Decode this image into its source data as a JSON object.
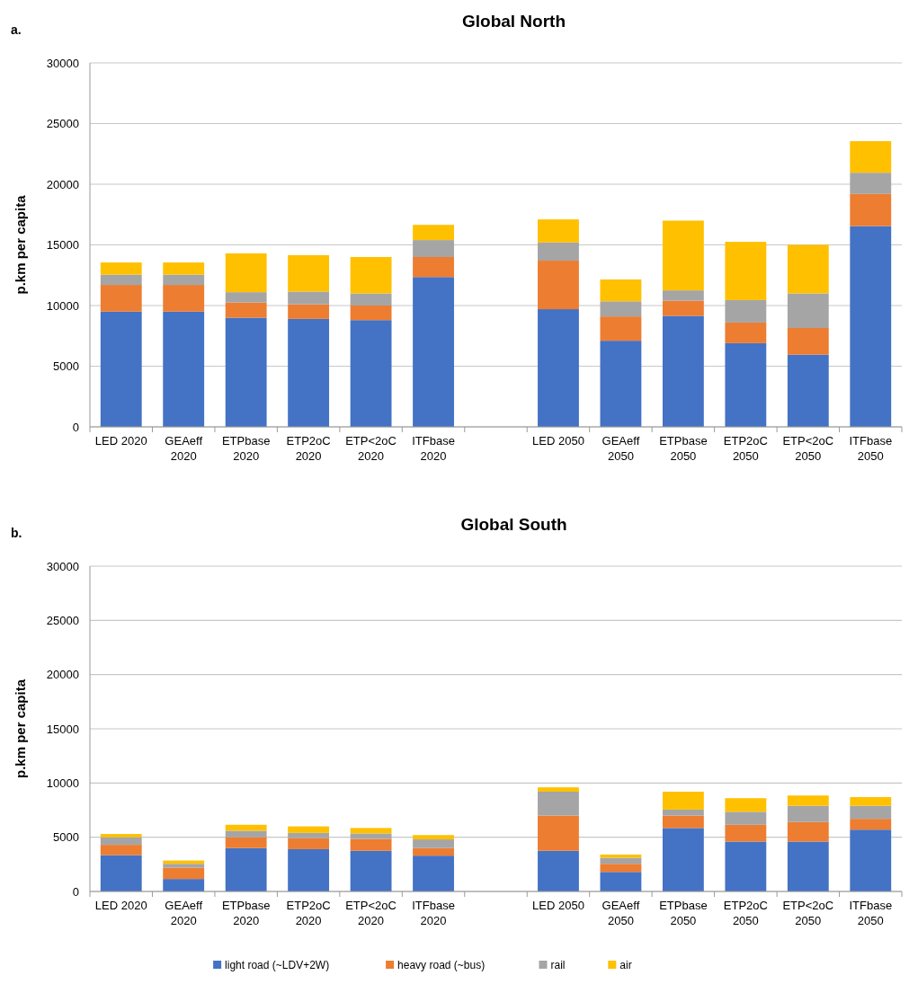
{
  "chart_data": [
    {
      "type": "bar",
      "title": "Global North",
      "annotations": [
        "a."
      ],
      "ylabel": "p.km per capita",
      "stacked": true,
      "categories": [
        "LED 2020",
        "GEAeff 2020",
        "ETPbase 2020",
        "ETP2oC 2020",
        "ETP<2oC 2020",
        "ITFbase 2020",
        null,
        "LED 2050",
        "GEAeff 2050",
        "ETPbase 2050",
        "ETP2oC 2050",
        "ETP<2oC 2050",
        "ITFbase 2050"
      ],
      "ylim": [
        0,
        30000
      ],
      "yticks": [
        0,
        5000,
        10000,
        15000,
        20000,
        25000,
        30000
      ],
      "grid": "y",
      "legend": false,
      "series": [
        {
          "color": "#4472c4",
          "values": [
            9500,
            9500,
            9000,
            8900,
            8800,
            12350,
            null,
            9700,
            7100,
            9150,
            6900,
            5950,
            16550
          ]
        },
        {
          "color": "#ed7d31",
          "values": [
            2200,
            2200,
            1250,
            1200,
            1200,
            1650,
            null,
            4000,
            2000,
            1250,
            1700,
            2200,
            2650
          ]
        },
        {
          "color": "#a5a5a5",
          "values": [
            850,
            850,
            850,
            1050,
            1000,
            1400,
            null,
            1500,
            1250,
            850,
            1850,
            2850,
            1750
          ]
        },
        {
          "color": "#ffc000",
          "values": [
            1000,
            1000,
            3200,
            3000,
            3000,
            1250,
            null,
            1900,
            1800,
            5750,
            4800,
            4000,
            2600
          ]
        }
      ]
    },
    {
      "type": "bar",
      "title": "Global South",
      "annotations": [
        "b."
      ],
      "ylabel": "p.km per capita",
      "stacked": true,
      "categories": [
        "LED 2020",
        "GEAeff 2020",
        "ETPbase 2020",
        "ETP2oC 2020",
        "ETP<2oC 2020",
        "ITFbase 2020",
        null,
        "LED 2050",
        "GEAeff 2050",
        "ETPbase 2050",
        "ETP2oC 2050",
        "ETP<2oC 2050",
        "ITFbase 2050"
      ],
      "ylim": [
        0,
        30000
      ],
      "yticks": [
        0,
        5000,
        10000,
        15000,
        20000,
        25000,
        30000
      ],
      "grid": "y",
      "legend": "bottom",
      "series": [
        {
          "name": "light road (~LDV+2W)",
          "color": "#4472c4",
          "values": [
            3350,
            1150,
            4000,
            3900,
            3750,
            3300,
            null,
            3750,
            1800,
            5850,
            4600,
            4600,
            5700
          ]
        },
        {
          "name": "heavy road (~bus)",
          "color": "#ed7d31",
          "values": [
            950,
            1050,
            1000,
            1000,
            1100,
            700,
            null,
            3250,
            750,
            1150,
            1550,
            1800,
            1000
          ]
        },
        {
          "name": "rail",
          "color": "#a5a5a5",
          "values": [
            700,
            350,
            600,
            500,
            500,
            800,
            null,
            2200,
            550,
            550,
            1200,
            1500,
            1200
          ]
        },
        {
          "name": "air",
          "color": "#ffc000",
          "values": [
            300,
            300,
            550,
            600,
            500,
            400,
            null,
            400,
            300,
            1650,
            1250,
            950,
            800
          ]
        }
      ]
    }
  ]
}
